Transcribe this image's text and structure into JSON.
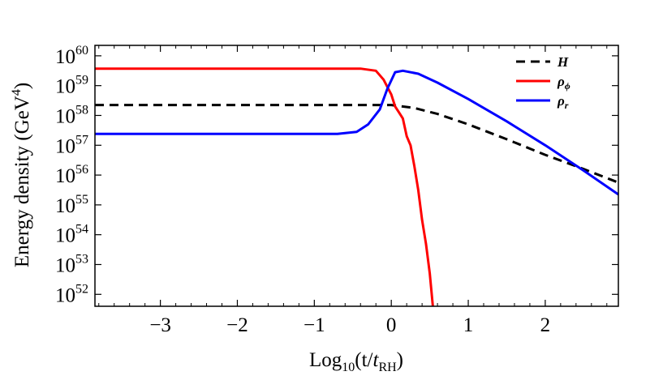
{
  "chart_data": {
    "type": "line",
    "xlabel": {
      "main": "Log",
      "sub": "10",
      "rest": "(t/",
      "var": "t",
      "varsub": "RH",
      "close": ")"
    },
    "ylabel": {
      "main": "Energy density (GeV",
      "sup": "4",
      "close": ")"
    },
    "xlim": [
      -3.85,
      2.95
    ],
    "ylim_log10": [
      51.6,
      60.35
    ],
    "y_scale": "log",
    "grid": false,
    "legend_position": "top-right",
    "x_ticks": [
      {
        "value": -3,
        "label": "−3"
      },
      {
        "value": -2,
        "label": "−2"
      },
      {
        "value": -1,
        "label": "−1"
      },
      {
        "value": 0,
        "label": "0"
      },
      {
        "value": 1,
        "label": "1"
      },
      {
        "value": 2,
        "label": "2"
      }
    ],
    "y_ticks": [
      {
        "exp": 52,
        "base": "10",
        "sup": "52"
      },
      {
        "exp": 53,
        "base": "10",
        "sup": "53"
      },
      {
        "exp": 54,
        "base": "10",
        "sup": "54"
      },
      {
        "exp": 55,
        "base": "10",
        "sup": "55"
      },
      {
        "exp": 56,
        "base": "10",
        "sup": "56"
      },
      {
        "exp": 57,
        "base": "10",
        "sup": "57"
      },
      {
        "exp": 58,
        "base": "10",
        "sup": "58"
      },
      {
        "exp": 59,
        "base": "10",
        "sup": "59"
      },
      {
        "exp": 60,
        "base": "10",
        "sup": "60"
      }
    ],
    "series": [
      {
        "name": "H",
        "name_sub": "",
        "color": "#000000",
        "style": "dashed",
        "points": [
          [
            -3.85,
            58.35
          ],
          [
            0.0,
            58.35
          ],
          [
            0.3,
            58.25
          ],
          [
            0.6,
            58.05
          ],
          [
            1.0,
            57.7
          ],
          [
            1.5,
            57.2
          ],
          [
            2.0,
            56.68
          ],
          [
            2.5,
            56.2
          ],
          [
            2.95,
            55.75
          ]
        ]
      },
      {
        "name": "ρ",
        "name_sub": "ϕ",
        "color": "#ff0000",
        "style": "solid",
        "points": [
          [
            -3.85,
            59.57
          ],
          [
            -0.4,
            59.57
          ],
          [
            -0.2,
            59.5
          ],
          [
            -0.1,
            59.2
          ],
          [
            0.0,
            58.7
          ],
          [
            0.05,
            58.3
          ],
          [
            0.1,
            58.1
          ],
          [
            0.15,
            57.9
          ],
          [
            0.2,
            57.3
          ],
          [
            0.25,
            57.0
          ],
          [
            0.3,
            56.3
          ],
          [
            0.35,
            55.5
          ],
          [
            0.4,
            54.5
          ],
          [
            0.45,
            53.7
          ],
          [
            0.5,
            52.7
          ],
          [
            0.54,
            51.6
          ]
        ]
      },
      {
        "name": "ρ",
        "name_sub": "r",
        "color": "#0000ff",
        "style": "solid",
        "points": [
          [
            -3.85,
            57.38
          ],
          [
            -0.7,
            57.38
          ],
          [
            -0.45,
            57.45
          ],
          [
            -0.3,
            57.7
          ],
          [
            -0.15,
            58.2
          ],
          [
            -0.05,
            58.9
          ],
          [
            0.05,
            59.45
          ],
          [
            0.15,
            59.5
          ],
          [
            0.35,
            59.4
          ],
          [
            0.6,
            59.1
          ],
          [
            1.0,
            58.55
          ],
          [
            1.5,
            57.8
          ],
          [
            2.0,
            57.0
          ],
          [
            2.5,
            56.15
          ],
          [
            2.95,
            55.35
          ]
        ]
      }
    ]
  }
}
